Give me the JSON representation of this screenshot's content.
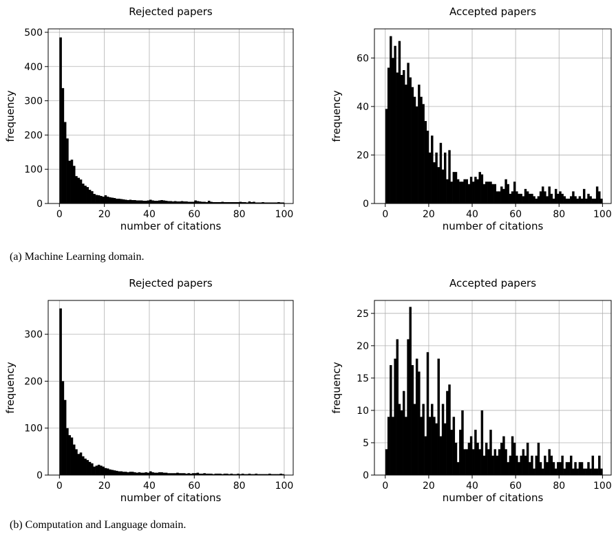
{
  "captions": {
    "a": "(a) Machine Learning domain.",
    "b": "(b) Computation and Language domain."
  },
  "chart_data": [
    {
      "type": "bar",
      "title": "Rejected papers",
      "xlabel": "number of citations",
      "ylabel": "frequency",
      "xlim": [
        -5,
        104
      ],
      "ylim": [
        0,
        510
      ],
      "xticks": [
        0,
        20,
        40,
        60,
        80,
        100
      ],
      "yticks": [
        0,
        100,
        200,
        300,
        400,
        500
      ],
      "grid": true,
      "bin_width": 1,
      "x": [
        0,
        1,
        2,
        3,
        4,
        5,
        6,
        7,
        8,
        9,
        10,
        11,
        12,
        13,
        14,
        15,
        16,
        17,
        18,
        19,
        20,
        21,
        22,
        23,
        24,
        25,
        26,
        27,
        28,
        29,
        30,
        31,
        32,
        33,
        34,
        35,
        36,
        37,
        38,
        39,
        40,
        41,
        42,
        43,
        44,
        45,
        46,
        47,
        48,
        49,
        50,
        51,
        52,
        53,
        54,
        55,
        56,
        57,
        58,
        59,
        60,
        61,
        62,
        63,
        64,
        65,
        66,
        67,
        68,
        69,
        70,
        71,
        72,
        73,
        74,
        75,
        76,
        77,
        78,
        79,
        80,
        81,
        82,
        83,
        84,
        85,
        86,
        87,
        88,
        89,
        90,
        91,
        92,
        93,
        94,
        95,
        96,
        97,
        98,
        99
      ],
      "values": [
        485,
        337,
        238,
        190,
        125,
        128,
        110,
        80,
        75,
        70,
        58,
        52,
        48,
        40,
        36,
        28,
        25,
        24,
        22,
        20,
        24,
        20,
        18,
        17,
        16,
        14,
        14,
        13,
        12,
        11,
        10,
        11,
        10,
        10,
        9,
        9,
        9,
        8,
        8,
        9,
        11,
        9,
        8,
        8,
        9,
        10,
        9,
        8,
        7,
        7,
        6,
        7,
        6,
        6,
        7,
        6,
        6,
        5,
        5,
        5,
        9,
        7,
        6,
        5,
        5,
        4,
        8,
        5,
        4,
        4,
        4,
        4,
        5,
        4,
        4,
        4,
        4,
        4,
        4,
        4,
        5,
        4,
        4,
        3,
        6,
        4,
        5,
        3,
        3,
        3,
        4,
        3,
        3,
        3,
        3,
        3,
        3,
        4,
        3,
        3
      ]
    },
    {
      "type": "bar",
      "title": "Accepted papers",
      "xlabel": "number of citations",
      "ylabel": "frequency",
      "xlim": [
        -5,
        104
      ],
      "ylim": [
        0,
        72
      ],
      "xticks": [
        0,
        20,
        40,
        60,
        80,
        100
      ],
      "yticks": [
        0,
        20,
        40,
        60
      ],
      "grid": true,
      "bin_width": 1,
      "x": [
        0,
        1,
        2,
        3,
        4,
        5,
        6,
        7,
        8,
        9,
        10,
        11,
        12,
        13,
        14,
        15,
        16,
        17,
        18,
        19,
        20,
        21,
        22,
        23,
        24,
        25,
        26,
        27,
        28,
        29,
        30,
        31,
        32,
        33,
        34,
        35,
        36,
        37,
        38,
        39,
        40,
        41,
        42,
        43,
        44,
        45,
        46,
        47,
        48,
        49,
        50,
        51,
        52,
        53,
        54,
        55,
        56,
        57,
        58,
        59,
        60,
        61,
        62,
        63,
        64,
        65,
        66,
        67,
        68,
        69,
        70,
        71,
        72,
        73,
        74,
        75,
        76,
        77,
        78,
        79,
        80,
        81,
        82,
        83,
        84,
        85,
        86,
        87,
        88,
        89,
        90,
        91,
        92,
        93,
        94,
        95,
        96,
        97,
        98,
        99
      ],
      "values": [
        39,
        56,
        69,
        60,
        65,
        54,
        67,
        53,
        55,
        49,
        58,
        52,
        48,
        44,
        40,
        49,
        44,
        41,
        34,
        30,
        21,
        28,
        17,
        21,
        15,
        25,
        14,
        21,
        10,
        22,
        9,
        13,
        13,
        10,
        9,
        9,
        10,
        10,
        8,
        11,
        9,
        11,
        10,
        13,
        12,
        8,
        9,
        9,
        9,
        8,
        8,
        5,
        5,
        7,
        6,
        10,
        8,
        4,
        5,
        9,
        5,
        4,
        4,
        3,
        6,
        5,
        4,
        4,
        3,
        2,
        3,
        5,
        7,
        5,
        3,
        7,
        4,
        2,
        6,
        4,
        5,
        4,
        3,
        2,
        2,
        3,
        5,
        3,
        2,
        3,
        2,
        6,
        2,
        4,
        3,
        2,
        2,
        7,
        5,
        2
      ]
    },
    {
      "type": "bar",
      "title": "Rejected papers",
      "xlabel": "number of citations",
      "ylabel": "frequency",
      "xlim": [
        -5,
        104
      ],
      "ylim": [
        0,
        372
      ],
      "xticks": [
        0,
        20,
        40,
        60,
        80,
        100
      ],
      "yticks": [
        0,
        100,
        200,
        300
      ],
      "grid": true,
      "bin_width": 1,
      "x": [
        0,
        1,
        2,
        3,
        4,
        5,
        6,
        7,
        8,
        9,
        10,
        11,
        12,
        13,
        14,
        15,
        16,
        17,
        18,
        19,
        20,
        21,
        22,
        23,
        24,
        25,
        26,
        27,
        28,
        29,
        30,
        31,
        32,
        33,
        34,
        35,
        36,
        37,
        38,
        39,
        40,
        41,
        42,
        43,
        44,
        45,
        46,
        47,
        48,
        49,
        50,
        51,
        52,
        53,
        54,
        55,
        56,
        57,
        58,
        59,
        60,
        61,
        62,
        63,
        64,
        65,
        66,
        67,
        68,
        69,
        70,
        71,
        72,
        73,
        74,
        75,
        76,
        77,
        78,
        79,
        80,
        81,
        82,
        83,
        84,
        85,
        86,
        87,
        88,
        89,
        90,
        91,
        92,
        93,
        94,
        95,
        96,
        97,
        98,
        99
      ],
      "values": [
        355,
        200,
        160,
        100,
        85,
        80,
        65,
        55,
        45,
        48,
        40,
        35,
        32,
        28,
        25,
        18,
        20,
        22,
        20,
        18,
        15,
        14,
        12,
        11,
        10,
        9,
        8,
        8,
        7,
        7,
        6,
        7,
        7,
        6,
        5,
        6,
        5,
        5,
        6,
        5,
        8,
        6,
        5,
        5,
        6,
        6,
        5,
        5,
        4,
        4,
        4,
        4,
        5,
        4,
        4,
        4,
        3,
        4,
        3,
        4,
        4,
        5,
        3,
        3,
        4,
        3,
        3,
        3,
        2,
        3,
        3,
        3,
        2,
        3,
        3,
        2,
        3,
        2,
        2,
        3,
        2,
        3,
        2,
        2,
        3,
        2,
        2,
        3,
        2,
        2,
        2,
        2,
        2,
        3,
        2,
        2,
        2,
        2,
        3,
        2
      ]
    },
    {
      "type": "bar",
      "title": "Accepted papers",
      "xlabel": "number of citations",
      "ylabel": "frequency",
      "xlim": [
        -5,
        104
      ],
      "ylim": [
        0,
        27
      ],
      "xticks": [
        0,
        20,
        40,
        60,
        80,
        100
      ],
      "yticks": [
        0,
        5,
        10,
        15,
        20,
        25
      ],
      "grid": true,
      "bin_width": 1,
      "x": [
        0,
        1,
        2,
        3,
        4,
        5,
        6,
        7,
        8,
        9,
        10,
        11,
        12,
        13,
        14,
        15,
        16,
        17,
        18,
        19,
        20,
        21,
        22,
        23,
        24,
        25,
        26,
        27,
        28,
        29,
        30,
        31,
        32,
        33,
        34,
        35,
        36,
        37,
        38,
        39,
        40,
        41,
        42,
        43,
        44,
        45,
        46,
        47,
        48,
        49,
        50,
        51,
        52,
        53,
        54,
        55,
        56,
        57,
        58,
        59,
        60,
        61,
        62,
        63,
        64,
        65,
        66,
        67,
        68,
        69,
        70,
        71,
        72,
        73,
        74,
        75,
        76,
        77,
        78,
        79,
        80,
        81,
        82,
        83,
        84,
        85,
        86,
        87,
        88,
        89,
        90,
        91,
        92,
        93,
        94,
        95,
        96,
        97,
        98,
        99
      ],
      "values": [
        4,
        9,
        17,
        9,
        18,
        21,
        11,
        10,
        13,
        9,
        21,
        26,
        17,
        11,
        18,
        16,
        9,
        11,
        6,
        19,
        9,
        11,
        9,
        8,
        18,
        6,
        11,
        8,
        13,
        14,
        7,
        9,
        5,
        2,
        7,
        10,
        4,
        4,
        5,
        6,
        4,
        7,
        5,
        4,
        10,
        3,
        5,
        4,
        7,
        3,
        4,
        3,
        4,
        5,
        6,
        4,
        2,
        3,
        6,
        5,
        3,
        2,
        3,
        4,
        3,
        5,
        2,
        3,
        1,
        3,
        5,
        2,
        1,
        3,
        2,
        4,
        3,
        2,
        1,
        2,
        2,
        3,
        1,
        2,
        2,
        3,
        1,
        2,
        1,
        2,
        2,
        1,
        1,
        2,
        1,
        3,
        1,
        1,
        3,
        1
      ]
    }
  ]
}
